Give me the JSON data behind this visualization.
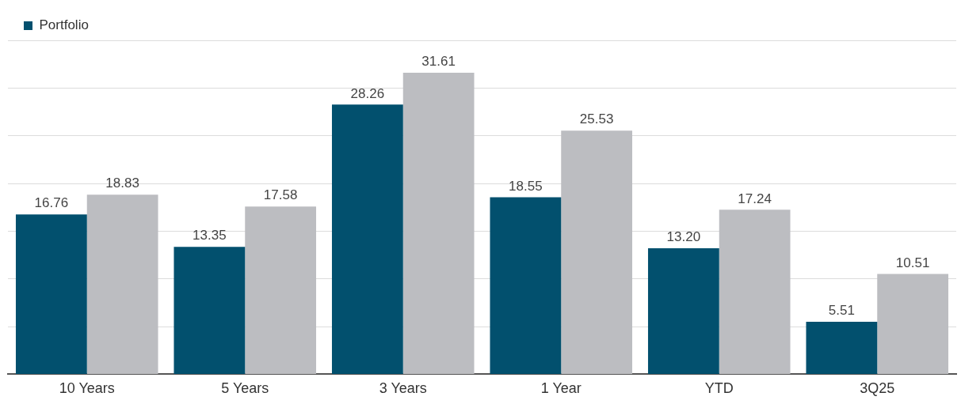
{
  "chart_data": {
    "type": "bar",
    "categories": [
      "10 Years",
      "5 Years",
      "3 Years",
      "1 Year",
      "YTD",
      "3Q25"
    ],
    "series": [
      {
        "name": "Portfolio",
        "color": "#02506e",
        "values": [
          16.76,
          13.35,
          28.26,
          18.55,
          13.2,
          5.51
        ],
        "value_labels": [
          "16.76",
          "13.35",
          "28.26",
          "18.55",
          "13.20",
          "5.51"
        ]
      },
      {
        "color": "#bcbdc1",
        "values": [
          18.83,
          17.58,
          31.61,
          25.53,
          17.24,
          10.51
        ],
        "value_labels": [
          "18.83",
          "17.58",
          "31.61",
          "25.53",
          "17.24",
          "10.51"
        ]
      }
    ],
    "ylim": [
      0,
      35
    ],
    "yticks": [
      {
        "value": 0,
        "label": null
      },
      {
        "value": 5,
        "label": null
      },
      {
        "value": 10,
        "label": null
      },
      {
        "value": 15,
        "label": null
      },
      {
        "value": 20,
        "label": null
      },
      {
        "value": 25,
        "label": null
      },
      {
        "value": 30,
        "label": null
      },
      {
        "value": 35,
        "label": null
      }
    ],
    "tick_labels": "x",
    "grid": "y",
    "legend": "top left"
  }
}
